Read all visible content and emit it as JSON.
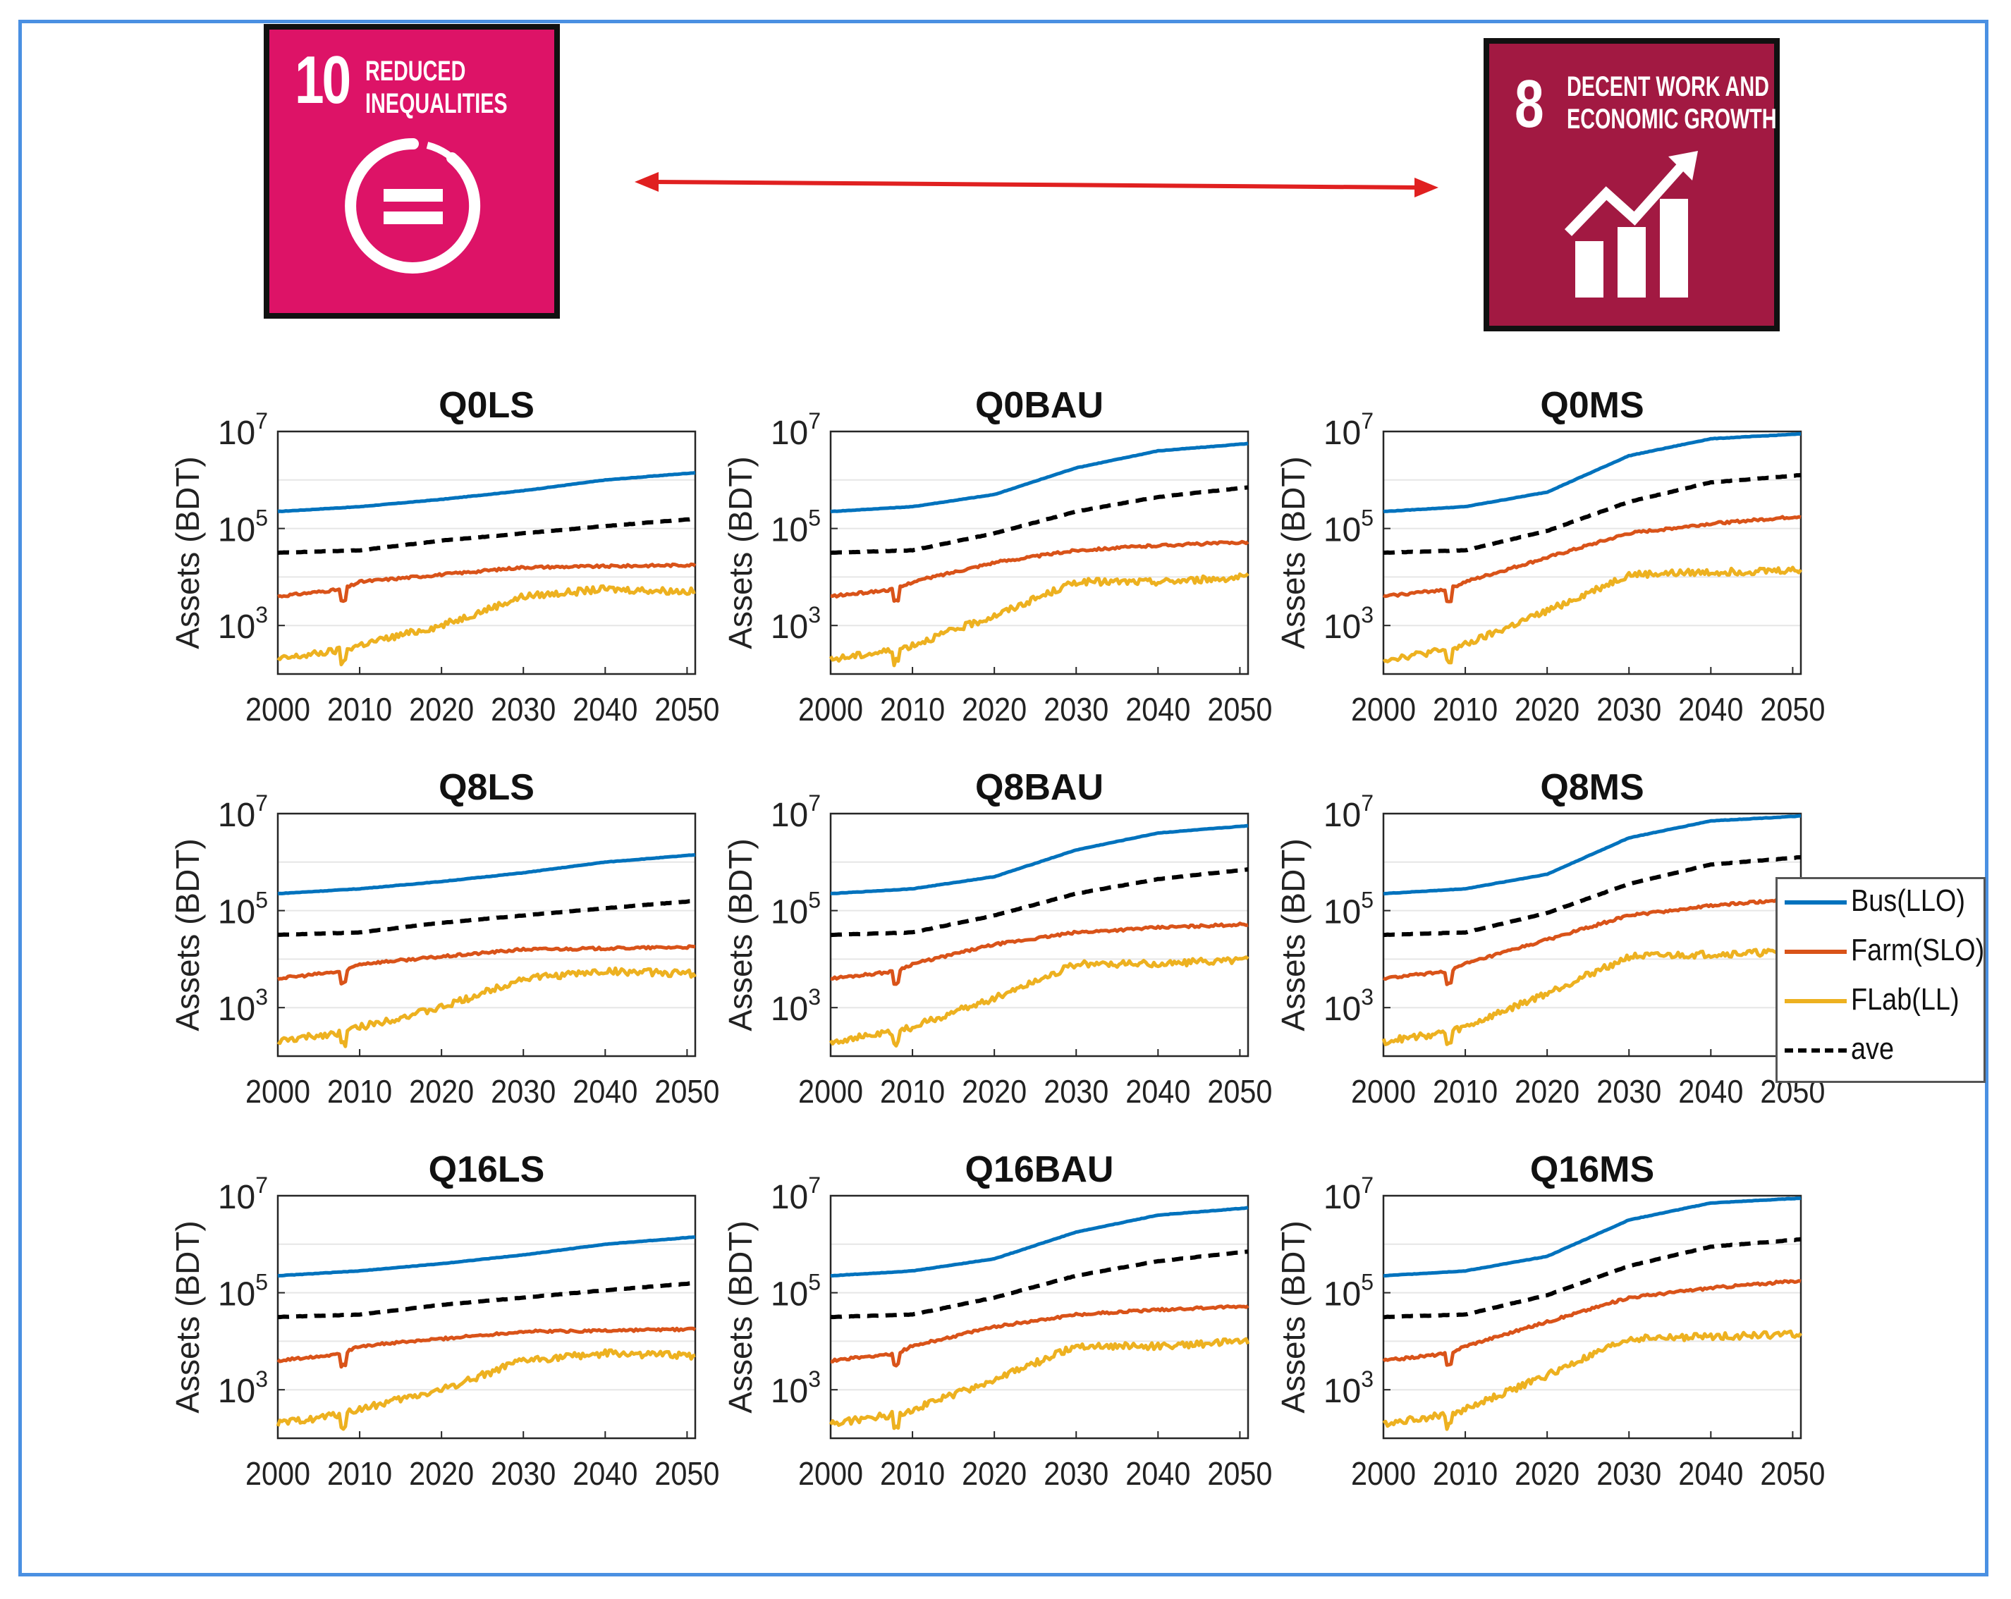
{
  "sdg_left": {
    "number": "10",
    "title_line1": "REDUCED",
    "title_line2": "INEQUALITIES",
    "color": "#dd1367",
    "icon": "equals-circle-icon"
  },
  "sdg_right": {
    "number": "8",
    "title_line1": "DECENT WORK AND",
    "title_line2": "ECONOMIC GROWTH",
    "color": "#a21942",
    "icon": "growth-bars-arrow-icon"
  },
  "connector": {
    "color": "#e02020",
    "icon": "double-arrow-icon"
  },
  "legend": [
    {
      "label": "Bus(LLO)",
      "color": "#0072bd",
      "style": "solid"
    },
    {
      "label": "Farm(SLO)",
      "color": "#d95319",
      "style": "solid"
    },
    {
      "label": "FLab(LL)",
      "color": "#edb120",
      "style": "solid"
    },
    {
      "label": "ave",
      "color": "#000000",
      "style": "dashed"
    }
  ],
  "chart_data": [
    {
      "type": "line",
      "title": "Q0LS",
      "ylabel": "Assets (BDT)",
      "yscale": "log",
      "ylim_exp": [
        2,
        7
      ],
      "ytick_exps": [
        3,
        5,
        7
      ],
      "xlim": [
        2000,
        2051
      ],
      "xticks": [
        2000,
        2010,
        2020,
        2030,
        2040,
        2050
      ],
      "series": [
        {
          "name": "Bus(LLO)",
          "x": [
            2000,
            2010,
            2020,
            2030,
            2040,
            2051
          ],
          "log10": [
            5.35,
            5.45,
            5.6,
            5.78,
            6.0,
            6.15
          ]
        },
        {
          "name": "ave",
          "x": [
            2000,
            2010,
            2020,
            2030,
            2040,
            2051
          ],
          "log10": [
            4.5,
            4.55,
            4.75,
            4.9,
            5.05,
            5.2
          ]
        },
        {
          "name": "Farm(SLO)",
          "x": [
            2000,
            2008,
            2010,
            2020,
            2030,
            2040,
            2051
          ],
          "log10": [
            3.6,
            3.75,
            3.9,
            4.05,
            4.2,
            4.22,
            4.25
          ]
        },
        {
          "name": "FLab(LL)",
          "x": [
            2000,
            2008,
            2010,
            2020,
            2030,
            2040,
            2051
          ],
          "log10": [
            2.3,
            2.5,
            2.6,
            3.0,
            3.6,
            3.75,
            3.7
          ]
        }
      ]
    },
    {
      "type": "line",
      "title": "Q0BAU",
      "ylabel": "Assets (BDT)",
      "yscale": "log",
      "ylim_exp": [
        2,
        7
      ],
      "ytick_exps": [
        3,
        5,
        7
      ],
      "xlim": [
        2000,
        2051
      ],
      "xticks": [
        2000,
        2010,
        2020,
        2030,
        2040,
        2050
      ],
      "series": [
        {
          "name": "Bus(LLO)",
          "x": [
            2000,
            2010,
            2020,
            2030,
            2040,
            2051
          ],
          "log10": [
            5.35,
            5.45,
            5.7,
            6.25,
            6.6,
            6.75
          ]
        },
        {
          "name": "ave",
          "x": [
            2000,
            2010,
            2020,
            2030,
            2040,
            2051
          ],
          "log10": [
            4.5,
            4.55,
            4.9,
            5.35,
            5.65,
            5.85
          ]
        },
        {
          "name": "Farm(SLO)",
          "x": [
            2000,
            2008,
            2010,
            2020,
            2030,
            2040,
            2051
          ],
          "log10": [
            3.6,
            3.75,
            3.9,
            4.3,
            4.55,
            4.65,
            4.72
          ]
        },
        {
          "name": "FLab(LL)",
          "x": [
            2000,
            2008,
            2010,
            2020,
            2030,
            2040,
            2051
          ],
          "log10": [
            2.3,
            2.5,
            2.6,
            3.2,
            3.9,
            3.9,
            4.0
          ]
        }
      ]
    },
    {
      "type": "line",
      "title": "Q0MS",
      "ylabel": "Assets (BDT)",
      "yscale": "log",
      "ylim_exp": [
        2,
        7
      ],
      "ytick_exps": [
        3,
        5,
        7
      ],
      "xlim": [
        2000,
        2051
      ],
      "xticks": [
        2000,
        2010,
        2020,
        2030,
        2040,
        2050
      ],
      "series": [
        {
          "name": "Bus(LLO)",
          "x": [
            2000,
            2010,
            2020,
            2030,
            2040,
            2051
          ],
          "log10": [
            5.35,
            5.45,
            5.75,
            6.5,
            6.85,
            6.95
          ]
        },
        {
          "name": "ave",
          "x": [
            2000,
            2010,
            2020,
            2030,
            2040,
            2051
          ],
          "log10": [
            4.5,
            4.55,
            4.95,
            5.55,
            5.95,
            6.1
          ]
        },
        {
          "name": "Farm(SLO)",
          "x": [
            2000,
            2008,
            2010,
            2020,
            2030,
            2040,
            2051
          ],
          "log10": [
            3.6,
            3.75,
            3.9,
            4.4,
            4.9,
            5.1,
            5.25
          ]
        },
        {
          "name": "FLab(LL)",
          "x": [
            2000,
            2008,
            2010,
            2020,
            2030,
            2040,
            2051
          ],
          "log10": [
            2.3,
            2.5,
            2.6,
            3.3,
            4.05,
            4.1,
            4.15
          ]
        }
      ]
    },
    {
      "type": "line",
      "title": "Q8LS",
      "ylabel": "Assets (BDT)",
      "yscale": "log",
      "ylim_exp": [
        2,
        7
      ],
      "ytick_exps": [
        3,
        5,
        7
      ],
      "xlim": [
        2000,
        2051
      ],
      "xticks": [
        2000,
        2010,
        2020,
        2030,
        2040,
        2050
      ],
      "series": [
        {
          "name": "Bus(LLO)",
          "x": [
            2000,
            2010,
            2020,
            2030,
            2040,
            2051
          ],
          "log10": [
            5.35,
            5.45,
            5.6,
            5.78,
            6.0,
            6.15
          ]
        },
        {
          "name": "ave",
          "x": [
            2000,
            2010,
            2020,
            2030,
            2040,
            2051
          ],
          "log10": [
            4.5,
            4.55,
            4.75,
            4.9,
            5.05,
            5.2
          ]
        },
        {
          "name": "Farm(SLO)",
          "x": [
            2000,
            2008,
            2010,
            2020,
            2030,
            2040,
            2051
          ],
          "log10": [
            3.6,
            3.75,
            3.9,
            4.05,
            4.2,
            4.22,
            4.25
          ]
        },
        {
          "name": "FLab(LL)",
          "x": [
            2000,
            2008,
            2010,
            2020,
            2030,
            2040,
            2051
          ],
          "log10": [
            2.3,
            2.5,
            2.6,
            3.0,
            3.6,
            3.75,
            3.7
          ]
        }
      ]
    },
    {
      "type": "line",
      "title": "Q8BAU",
      "ylabel": "Assets (BDT)",
      "yscale": "log",
      "ylim_exp": [
        2,
        7
      ],
      "ytick_exps": [
        3,
        5,
        7
      ],
      "xlim": [
        2000,
        2051
      ],
      "xticks": [
        2000,
        2010,
        2020,
        2030,
        2040,
        2050
      ],
      "series": [
        {
          "name": "Bus(LLO)",
          "x": [
            2000,
            2010,
            2020,
            2030,
            2040,
            2051
          ],
          "log10": [
            5.35,
            5.45,
            5.7,
            6.25,
            6.6,
            6.75
          ]
        },
        {
          "name": "ave",
          "x": [
            2000,
            2010,
            2020,
            2030,
            2040,
            2051
          ],
          "log10": [
            4.5,
            4.55,
            4.9,
            5.35,
            5.65,
            5.85
          ]
        },
        {
          "name": "Farm(SLO)",
          "x": [
            2000,
            2008,
            2010,
            2020,
            2030,
            2040,
            2051
          ],
          "log10": [
            3.6,
            3.75,
            3.9,
            4.3,
            4.55,
            4.65,
            4.72
          ]
        },
        {
          "name": "FLab(LL)",
          "x": [
            2000,
            2008,
            2010,
            2020,
            2030,
            2040,
            2051
          ],
          "log10": [
            2.3,
            2.5,
            2.6,
            3.2,
            3.9,
            3.9,
            4.0
          ]
        }
      ]
    },
    {
      "type": "line",
      "title": "Q8MS",
      "ylabel": "Assets (BDT)",
      "yscale": "log",
      "ylim_exp": [
        2,
        7
      ],
      "ytick_exps": [
        3,
        5,
        7
      ],
      "xlim": [
        2000,
        2051
      ],
      "xticks": [
        2000,
        2010,
        2020,
        2030,
        2040,
        2050
      ],
      "series": [
        {
          "name": "Bus(LLO)",
          "x": [
            2000,
            2010,
            2020,
            2030,
            2040,
            2051
          ],
          "log10": [
            5.35,
            5.45,
            5.75,
            6.5,
            6.85,
            6.95
          ]
        },
        {
          "name": "ave",
          "x": [
            2000,
            2010,
            2020,
            2030,
            2040,
            2051
          ],
          "log10": [
            4.5,
            4.55,
            4.95,
            5.55,
            5.95,
            6.1
          ]
        },
        {
          "name": "Farm(SLO)",
          "x": [
            2000,
            2008,
            2010,
            2020,
            2030,
            2040,
            2051
          ],
          "log10": [
            3.6,
            3.75,
            3.9,
            4.4,
            4.9,
            5.1,
            5.25
          ]
        },
        {
          "name": "FLab(LL)",
          "x": [
            2000,
            2008,
            2010,
            2020,
            2030,
            2040,
            2051
          ],
          "log10": [
            2.3,
            2.5,
            2.6,
            3.3,
            4.05,
            4.1,
            4.15
          ]
        }
      ]
    },
    {
      "type": "line",
      "title": "Q16LS",
      "ylabel": "Assets (BDT)",
      "yscale": "log",
      "ylim_exp": [
        2,
        7
      ],
      "ytick_exps": [
        3,
        5,
        7
      ],
      "xlim": [
        2000,
        2051
      ],
      "xticks": [
        2000,
        2010,
        2020,
        2030,
        2040,
        2050
      ],
      "series": [
        {
          "name": "Bus(LLO)",
          "x": [
            2000,
            2010,
            2020,
            2030,
            2040,
            2051
          ],
          "log10": [
            5.35,
            5.45,
            5.6,
            5.78,
            6.0,
            6.15
          ]
        },
        {
          "name": "ave",
          "x": [
            2000,
            2010,
            2020,
            2030,
            2040,
            2051
          ],
          "log10": [
            4.5,
            4.55,
            4.75,
            4.9,
            5.05,
            5.2
          ]
        },
        {
          "name": "Farm(SLO)",
          "x": [
            2000,
            2008,
            2010,
            2020,
            2030,
            2040,
            2051
          ],
          "log10": [
            3.6,
            3.75,
            3.9,
            4.05,
            4.2,
            4.22,
            4.25
          ]
        },
        {
          "name": "FLab(LL)",
          "x": [
            2000,
            2008,
            2010,
            2020,
            2030,
            2040,
            2051
          ],
          "log10": [
            2.3,
            2.5,
            2.6,
            3.0,
            3.6,
            3.75,
            3.7
          ]
        }
      ]
    },
    {
      "type": "line",
      "title": "Q16BAU",
      "ylabel": "Assets (BDT)",
      "yscale": "log",
      "ylim_exp": [
        2,
        7
      ],
      "ytick_exps": [
        3,
        5,
        7
      ],
      "xlim": [
        2000,
        2051
      ],
      "xticks": [
        2000,
        2010,
        2020,
        2030,
        2040,
        2050
      ],
      "series": [
        {
          "name": "Bus(LLO)",
          "x": [
            2000,
            2010,
            2020,
            2030,
            2040,
            2051
          ],
          "log10": [
            5.35,
            5.45,
            5.7,
            6.25,
            6.6,
            6.75
          ]
        },
        {
          "name": "ave",
          "x": [
            2000,
            2010,
            2020,
            2030,
            2040,
            2051
          ],
          "log10": [
            4.5,
            4.55,
            4.9,
            5.35,
            5.65,
            5.85
          ]
        },
        {
          "name": "Farm(SLO)",
          "x": [
            2000,
            2008,
            2010,
            2020,
            2030,
            2040,
            2051
          ],
          "log10": [
            3.6,
            3.75,
            3.9,
            4.3,
            4.55,
            4.65,
            4.72
          ]
        },
        {
          "name": "FLab(LL)",
          "x": [
            2000,
            2008,
            2010,
            2020,
            2030,
            2040,
            2051
          ],
          "log10": [
            2.3,
            2.5,
            2.6,
            3.2,
            3.9,
            3.9,
            4.0
          ]
        }
      ]
    },
    {
      "type": "line",
      "title": "Q16MS",
      "ylabel": "Assets (BDT)",
      "yscale": "log",
      "ylim_exp": [
        2,
        7
      ],
      "ytick_exps": [
        3,
        5,
        7
      ],
      "xlim": [
        2000,
        2051
      ],
      "xticks": [
        2000,
        2010,
        2020,
        2030,
        2040,
        2050
      ],
      "series": [
        {
          "name": "Bus(LLO)",
          "x": [
            2000,
            2010,
            2020,
            2030,
            2040,
            2051
          ],
          "log10": [
            5.35,
            5.45,
            5.75,
            6.5,
            6.85,
            6.95
          ]
        },
        {
          "name": "ave",
          "x": [
            2000,
            2010,
            2020,
            2030,
            2040,
            2051
          ],
          "log10": [
            4.5,
            4.55,
            4.95,
            5.55,
            5.95,
            6.1
          ]
        },
        {
          "name": "Farm(SLO)",
          "x": [
            2000,
            2008,
            2010,
            2020,
            2030,
            2040,
            2051
          ],
          "log10": [
            3.6,
            3.75,
            3.9,
            4.4,
            4.9,
            5.1,
            5.25
          ]
        },
        {
          "name": "FLab(LL)",
          "x": [
            2000,
            2008,
            2010,
            2020,
            2030,
            2040,
            2051
          ],
          "log10": [
            2.3,
            2.5,
            2.6,
            3.3,
            4.05,
            4.1,
            4.15
          ]
        }
      ]
    }
  ]
}
